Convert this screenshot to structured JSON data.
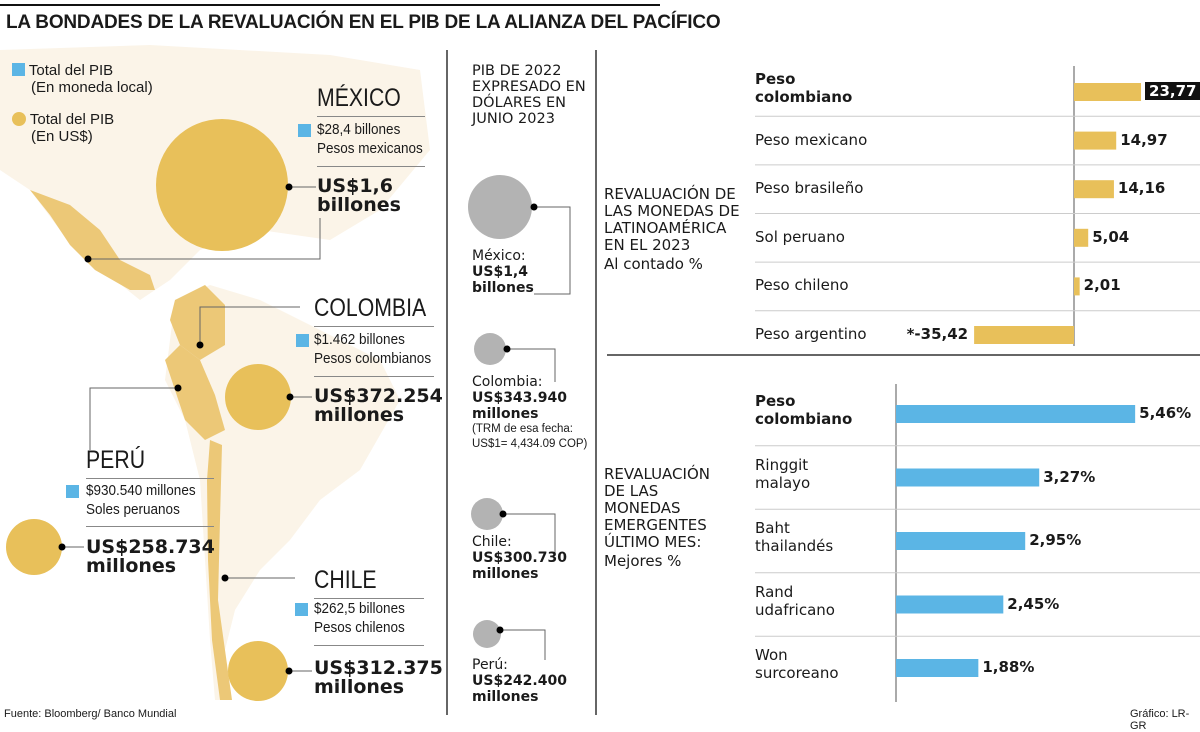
{
  "title": "LA BONDADES DE LA REVALUACIÓN EN EL PIB DE LA ALIANZA DEL PACÍFICO",
  "legend": {
    "local": "Total del PIB",
    "local_sub": "(En moneda local)",
    "usd": "Total del PIB",
    "usd_sub": "(En US$)"
  },
  "colors": {
    "local": "#5bb5e5",
    "usd": "#e8c05a",
    "gray": "#b3b3b3",
    "map": "#fbf4e8"
  },
  "countries": [
    {
      "name": "MÉXICO",
      "local1": "$28,4 billones",
      "local2": "Pesos mexicanos",
      "usd1": "US$1,6",
      "usd2": "billones"
    },
    {
      "name": "COLOMBIA",
      "local1": "$1.462 billones",
      "local2": "Pesos colombianos",
      "usd1": "US$372.254",
      "usd2": "millones"
    },
    {
      "name": "PERÚ",
      "local1": "$930.540 millones",
      "local2": "Soles peruanos",
      "usd1": "US$258.734",
      "usd2": "millones"
    },
    {
      "name": "CHILE",
      "local1": "$262,5 billones",
      "local2": "Pesos chilenos",
      "usd1": "US$312.375",
      "usd2": "millones"
    }
  ],
  "middle": {
    "title": [
      "PIB DE 2022",
      "EXPRESADO EN",
      "DÓLARES EN",
      "JUNIO 2023"
    ],
    "items": [
      {
        "label": "México:",
        "v1": "US$1,4",
        "v2": "billones"
      },
      {
        "label": "Colombia:",
        "v1": "US$343.940",
        "v2": "millones",
        "note1": "(TRM de esa fecha:",
        "note2": "US$1= 4,434.09 COP)"
      },
      {
        "label": "Chile:",
        "v1": "US$300.730",
        "v2": "millones"
      },
      {
        "label": "Perú:",
        "v1": "US$242.400",
        "v2": "millones"
      }
    ]
  },
  "chart_data": [
    {
      "type": "bar",
      "orientation": "horizontal",
      "title": "REVALUACIÓN DE LAS MONEDAS DE LATINOAMÉRICA EN EL 2023",
      "title_lines": [
        "REVALUACIÓN DE",
        "LAS MONEDAS DE",
        "LATINOAMÉRICA",
        "EN EL 2023"
      ],
      "subtitle": "Al contado %",
      "categories": [
        "Peso colombiano",
        "Peso mexicano",
        "Peso brasileño",
        "Sol peruano",
        "Peso chileno",
        "Peso argentino"
      ],
      "values": [
        23.77,
        14.97,
        14.16,
        5.04,
        2.01,
        -35.42
      ],
      "labels": [
        "23,77",
        "14,97",
        "14,16",
        "5,04",
        "2,01",
        "*-35,42"
      ],
      "color": "#e8c05a"
    },
    {
      "type": "bar",
      "orientation": "horizontal",
      "title": "REVALUACIÓN DE LAS MONEDAS EMERGENTES ÚLTIMO MES:",
      "title_lines": [
        "REVALUACIÓN",
        "DE LAS",
        "MONEDAS",
        "EMERGENTES",
        "ÚLTIMO MES:"
      ],
      "subtitle": "Mejores %",
      "categories": [
        "Peso colombiano",
        "Ringgit malayo",
        "Baht thailandés",
        "Rand udafricano",
        "Won surcoreano"
      ],
      "values": [
        5.46,
        3.27,
        2.95,
        2.45,
        1.88
      ],
      "labels": [
        "5,46%",
        "3,27%",
        "2,95%",
        "2,45%",
        "1,88%"
      ],
      "color": "#5bb5e5"
    }
  ],
  "footer": {
    "source": "Fuente: Bloomberg/ Banco Mundial",
    "credit": "Gráfico: LR-GR"
  }
}
